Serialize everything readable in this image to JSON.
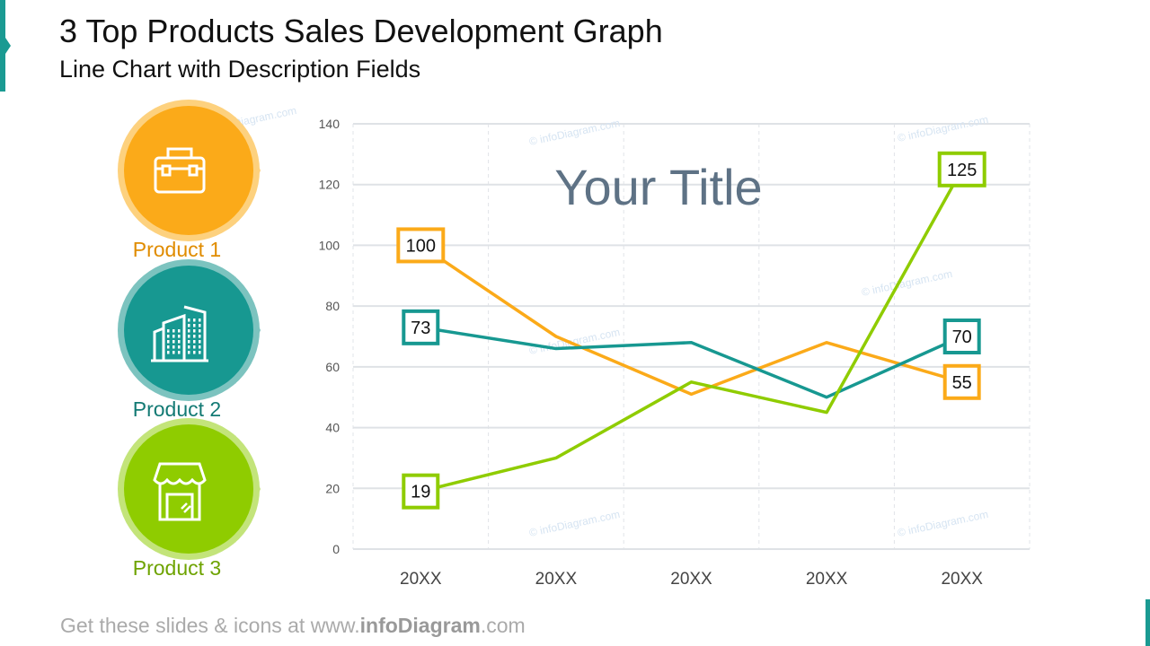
{
  "header": {
    "title": "3 Top Products Sales Development Graph",
    "subtitle": "Line Chart with Description Fields"
  },
  "products": [
    {
      "label": "Product 1",
      "icon": "toolbox-icon",
      "color": "#fbaa19",
      "ring": "#fdd17e",
      "text": "#e08c00"
    },
    {
      "label": "Product 2",
      "icon": "office-building-icon",
      "color": "#179891",
      "ring": "#7cc3bf",
      "text": "#137a74"
    },
    {
      "label": "Product 3",
      "icon": "storefront-icon",
      "color": "#8fcc00",
      "ring": "#c3e47a",
      "text": "#6ea300"
    }
  ],
  "footer": {
    "prefix": "Get these slides & icons at www.",
    "brand": "infoDiagram",
    "suffix": ".com"
  },
  "watermark": "© infoDiagram.com",
  "chart_data": {
    "type": "line",
    "title": "Your Title",
    "categories": [
      "20XX",
      "20XX",
      "20XX",
      "20XX",
      "20XX"
    ],
    "ylim": [
      0,
      140
    ],
    "yticks": [
      0,
      20,
      40,
      60,
      80,
      100,
      120,
      140
    ],
    "grid": true,
    "series": [
      {
        "name": "Product 1",
        "color": "#fbaa19",
        "values": [
          100,
          70,
          51,
          68,
          55
        ],
        "labels": {
          "0": "100",
          "4": "55"
        }
      },
      {
        "name": "Product 2",
        "color": "#179891",
        "values": [
          73,
          66,
          68,
          50,
          70
        ],
        "labels": {
          "0": "73",
          "4": "70"
        }
      },
      {
        "name": "Product 3",
        "color": "#8fcc00",
        "values": [
          19,
          30,
          55,
          45,
          125
        ],
        "labels": {
          "0": "19",
          "4": "125"
        }
      }
    ]
  }
}
